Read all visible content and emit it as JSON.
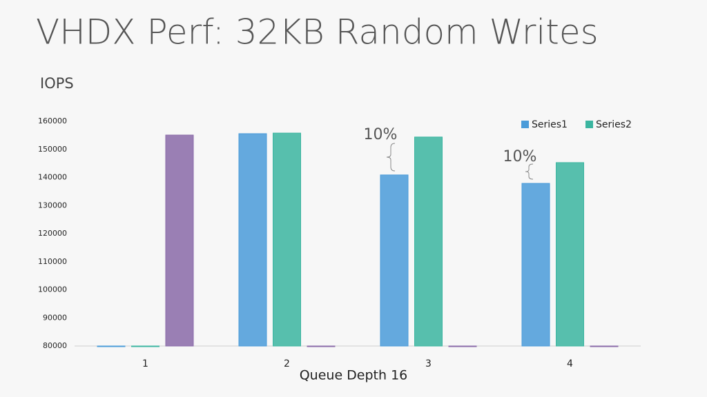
{
  "chart_data": {
    "type": "bar",
    "title": "VHDX Perf: 32KB Random Writes",
    "subtitle": "IOPS",
    "x_label": "Queue Depth 16",
    "categories": [
      "1",
      "2",
      "3",
      "4"
    ],
    "series": [
      {
        "name": "Series1",
        "color": "#4a9bd9",
        "values": [
          80000,
          155600,
          140900,
          137900
        ]
      },
      {
        "name": "Series2",
        "color": "#3bb5a0",
        "values": [
          80000,
          155800,
          154400,
          145300
        ]
      },
      {
        "color": "#8a6aa8",
        "values": [
          155100,
          80000,
          80000,
          80000
        ]
      }
    ],
    "annotations": [
      "10%",
      "10%"
    ],
    "ylim": [
      80000,
      160000
    ],
    "yticks": [
      80000,
      90000,
      100000,
      110000,
      120000,
      130000,
      140000,
      150000,
      160000
    ],
    "grid": false,
    "legend": "top-right"
  }
}
